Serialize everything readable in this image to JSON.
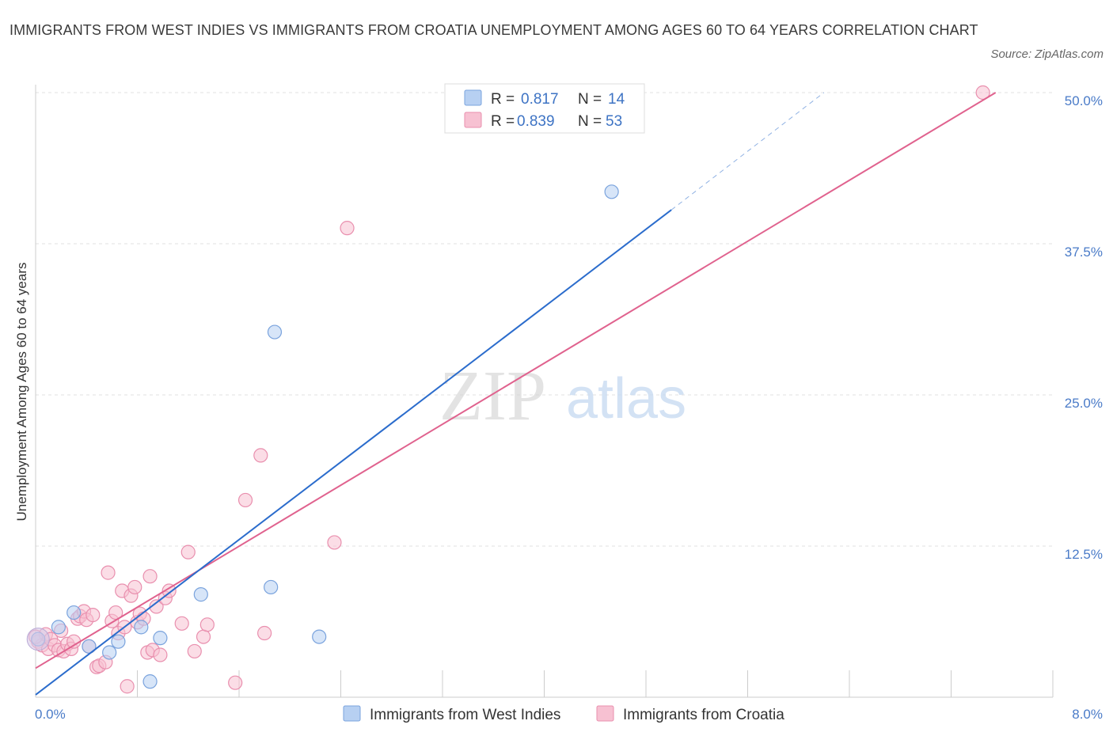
{
  "title": "IMMIGRANTS FROM WEST INDIES VS IMMIGRANTS FROM CROATIA UNEMPLOYMENT AMONG AGES 60 TO 64 YEARS CORRELATION CHART",
  "source": "Source: ZipAtlas.com",
  "watermark": {
    "zip": "ZIP",
    "atlas": "atlas"
  },
  "colors": {
    "blue_fill": "#b7d0f2",
    "blue_stroke": "#7aa3dd",
    "blue_line": "#2b6ccc",
    "pink_fill": "#f7c1d2",
    "pink_stroke": "#e98fae",
    "pink_line": "#e0628e",
    "grid": "#e2e2e2",
    "tick_text": "#4a7bc8"
  },
  "legend_top": [
    {
      "r_label": "R =",
      "r_value": "0.817",
      "n_label": "N =",
      "n_value": "14"
    },
    {
      "r_label": "R =",
      "r_value": "0.839",
      "n_label": "N =",
      "n_value": "53"
    }
  ],
  "chart_data": {
    "type": "scatter",
    "xlabel": "",
    "ylabel": "Unemployment Among Ages 60 to 64 years",
    "xlim": [
      0,
      8
    ],
    "ylim": [
      0,
      50
    ],
    "x_tick_labels": {
      "min": "0.0%",
      "max": "8.0%"
    },
    "y_ticks": [
      {
        "value": 12.5,
        "label": "12.5%"
      },
      {
        "value": 25,
        "label": "25.0%"
      },
      {
        "value": 37.5,
        "label": "37.5%"
      },
      {
        "value": 50,
        "label": "50.0%"
      }
    ],
    "grid": "horizontal dashed",
    "legend_placement": "top-center and bottom",
    "series": [
      {
        "name": "Immigrants from West Indies",
        "color": "#b7d0f2",
        "trend": {
          "x0": 0,
          "y0": 0.2,
          "x1": 5.0,
          "y1": 40.3,
          "dash_to_x": 6.2,
          "dash_to_y": 50
        },
        "points": [
          [
            0.02,
            4.8
          ],
          [
            0.18,
            5.8
          ],
          [
            0.3,
            7.0
          ],
          [
            0.42,
            4.2
          ],
          [
            0.58,
            3.7
          ],
          [
            0.65,
            4.6
          ],
          [
            0.83,
            5.8
          ],
          [
            0.9,
            1.3
          ],
          [
            0.98,
            4.9
          ],
          [
            1.3,
            8.5
          ],
          [
            1.85,
            9.1
          ],
          [
            2.23,
            5.0
          ],
          [
            1.88,
            30.2
          ],
          [
            4.53,
            41.8
          ]
        ]
      },
      {
        "name": "Immigrants from Croatia",
        "color": "#f7c1d2",
        "trend": {
          "x0": 0,
          "y0": 2.4,
          "x1": 7.55,
          "y1": 50
        },
        "points": [
          [
            0.02,
            4.6
          ],
          [
            0.05,
            4.3
          ],
          [
            0.08,
            5.2
          ],
          [
            0.1,
            4.0
          ],
          [
            0.12,
            4.8
          ],
          [
            0.15,
            4.3
          ],
          [
            0.18,
            3.9
          ],
          [
            0.2,
            5.5
          ],
          [
            0.22,
            3.8
          ],
          [
            0.25,
            4.4
          ],
          [
            0.28,
            4.0
          ],
          [
            0.3,
            4.6
          ],
          [
            0.33,
            6.5
          ],
          [
            0.35,
            6.7
          ],
          [
            0.38,
            7.1
          ],
          [
            0.4,
            6.4
          ],
          [
            0.42,
            4.2
          ],
          [
            0.45,
            6.8
          ],
          [
            0.48,
            2.5
          ],
          [
            0.5,
            2.6
          ],
          [
            0.55,
            2.9
          ],
          [
            0.57,
            10.3
          ],
          [
            0.6,
            6.3
          ],
          [
            0.63,
            7.0
          ],
          [
            0.65,
            5.3
          ],
          [
            0.68,
            8.8
          ],
          [
            0.7,
            5.8
          ],
          [
            0.72,
            0.9
          ],
          [
            0.75,
            8.4
          ],
          [
            0.78,
            9.1
          ],
          [
            0.8,
            6.2
          ],
          [
            0.82,
            6.9
          ],
          [
            0.85,
            6.5
          ],
          [
            0.88,
            3.7
          ],
          [
            0.9,
            10.0
          ],
          [
            0.92,
            3.9
          ],
          [
            0.95,
            7.5
          ],
          [
            0.98,
            3.5
          ],
          [
            1.02,
            8.2
          ],
          [
            1.05,
            8.8
          ],
          [
            1.15,
            6.1
          ],
          [
            1.2,
            12.0
          ],
          [
            1.25,
            3.8
          ],
          [
            1.32,
            5.0
          ],
          [
            1.35,
            6.0
          ],
          [
            1.57,
            1.2
          ],
          [
            1.65,
            16.3
          ],
          [
            1.77,
            20.0
          ],
          [
            1.8,
            5.3
          ],
          [
            2.35,
            12.8
          ],
          [
            2.45,
            38.8
          ],
          [
            7.45,
            50.0
          ],
          [
            0.0,
            5.0
          ]
        ]
      }
    ]
  }
}
